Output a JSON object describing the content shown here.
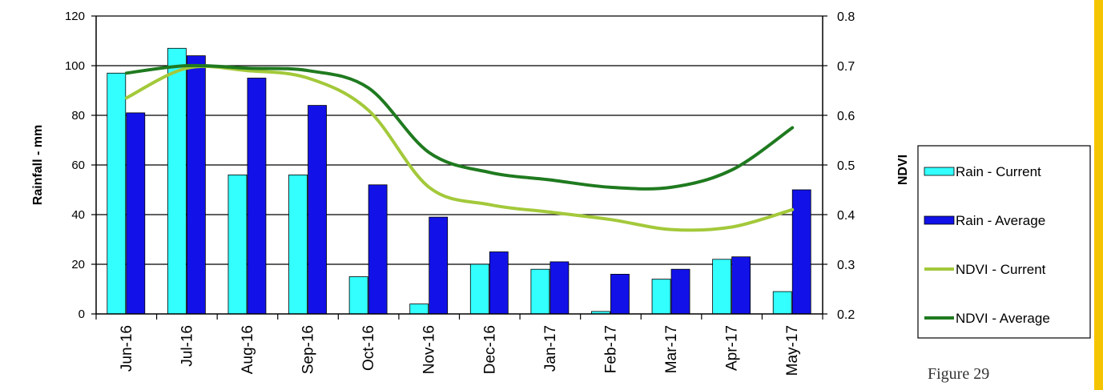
{
  "chart_data": {
    "type": "bar",
    "categories": [
      "Jun-16",
      "Jul-16",
      "Aug-16",
      "Sep-16",
      "Oct-16",
      "Nov-16",
      "Dec-16",
      "Jan-17",
      "Feb-17",
      "Mar-17",
      "Apr-17",
      "May-17"
    ],
    "bar_series": [
      {
        "name": "Rain - Current",
        "color": "#33ffff",
        "values": [
          97,
          107,
          56,
          56,
          15,
          4,
          20,
          18,
          1,
          14,
          22,
          9
        ]
      },
      {
        "name": "Rain - Average",
        "color": "#1212e8",
        "values": [
          81,
          104,
          95,
          84,
          52,
          39,
          25,
          21,
          16,
          18,
          23,
          50
        ]
      }
    ],
    "line_series": [
      {
        "name": "NDVI - Current",
        "color": "#a3c93a",
        "values": [
          0.635,
          0.695,
          0.69,
          0.675,
          0.61,
          0.455,
          0.42,
          0.405,
          0.39,
          0.37,
          0.375,
          0.41
        ]
      },
      {
        "name": "NDVI - Average",
        "color": "#1f7a1f",
        "values": [
          0.685,
          0.7,
          0.695,
          0.69,
          0.655,
          0.525,
          0.485,
          0.47,
          0.455,
          0.455,
          0.49,
          0.575
        ]
      }
    ],
    "ylabel": "Rainfall - mm",
    "y2label": "NDVI",
    "ylim": [
      0,
      120
    ],
    "y2lim": [
      0.2,
      0.8
    ],
    "yticks": [
      "0",
      "20",
      "40",
      "60",
      "80",
      "100",
      "120"
    ],
    "y2ticks": [
      "0.2",
      "0.3",
      "0.4",
      "0.5",
      "0.6",
      "0.7",
      "0.8"
    ],
    "grid": true,
    "legend": "right"
  },
  "caption": "Figure 29"
}
